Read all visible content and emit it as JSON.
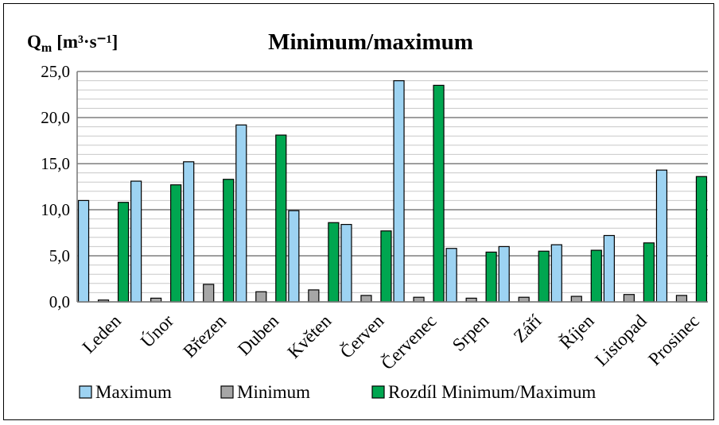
{
  "chart_data": {
    "type": "bar",
    "title": "Minimum/maximum",
    "ylabel": "Q",
    "ylabel_sub": "m",
    "ylabel_unit": "[m³·s⁻¹]",
    "ylim": [
      0,
      25
    ],
    "yticks": [
      "0,0",
      "5,0",
      "10,0",
      "15,0",
      "20,0",
      "25,0"
    ],
    "grid": true,
    "legend_position": "bottom",
    "categories": [
      "Leden",
      "Únor",
      "Březen",
      "Duben",
      "Květen",
      "Červen",
      "Červenec",
      "Srpen",
      "Září",
      "Říjen",
      "Listopad",
      "Prosinec"
    ],
    "series": [
      {
        "name": "Maximum",
        "color": "#9DD3F2",
        "values": [
          11.0,
          13.1,
          15.2,
          19.2,
          9.9,
          8.4,
          24.0,
          5.8,
          6.0,
          6.2,
          7.2,
          14.3
        ]
      },
      {
        "name": "Minimum",
        "color": "#A6A6A6",
        "values": [
          0.2,
          0.4,
          1.9,
          1.1,
          1.3,
          0.7,
          0.5,
          0.4,
          0.5,
          0.6,
          0.8,
          0.7
        ]
      },
      {
        "name": "Rozdíl Minimum/Maximum",
        "color": "#00A650",
        "values": [
          10.8,
          12.7,
          13.3,
          18.1,
          8.6,
          7.7,
          23.5,
          5.4,
          5.5,
          5.6,
          6.4,
          13.6
        ]
      }
    ]
  }
}
